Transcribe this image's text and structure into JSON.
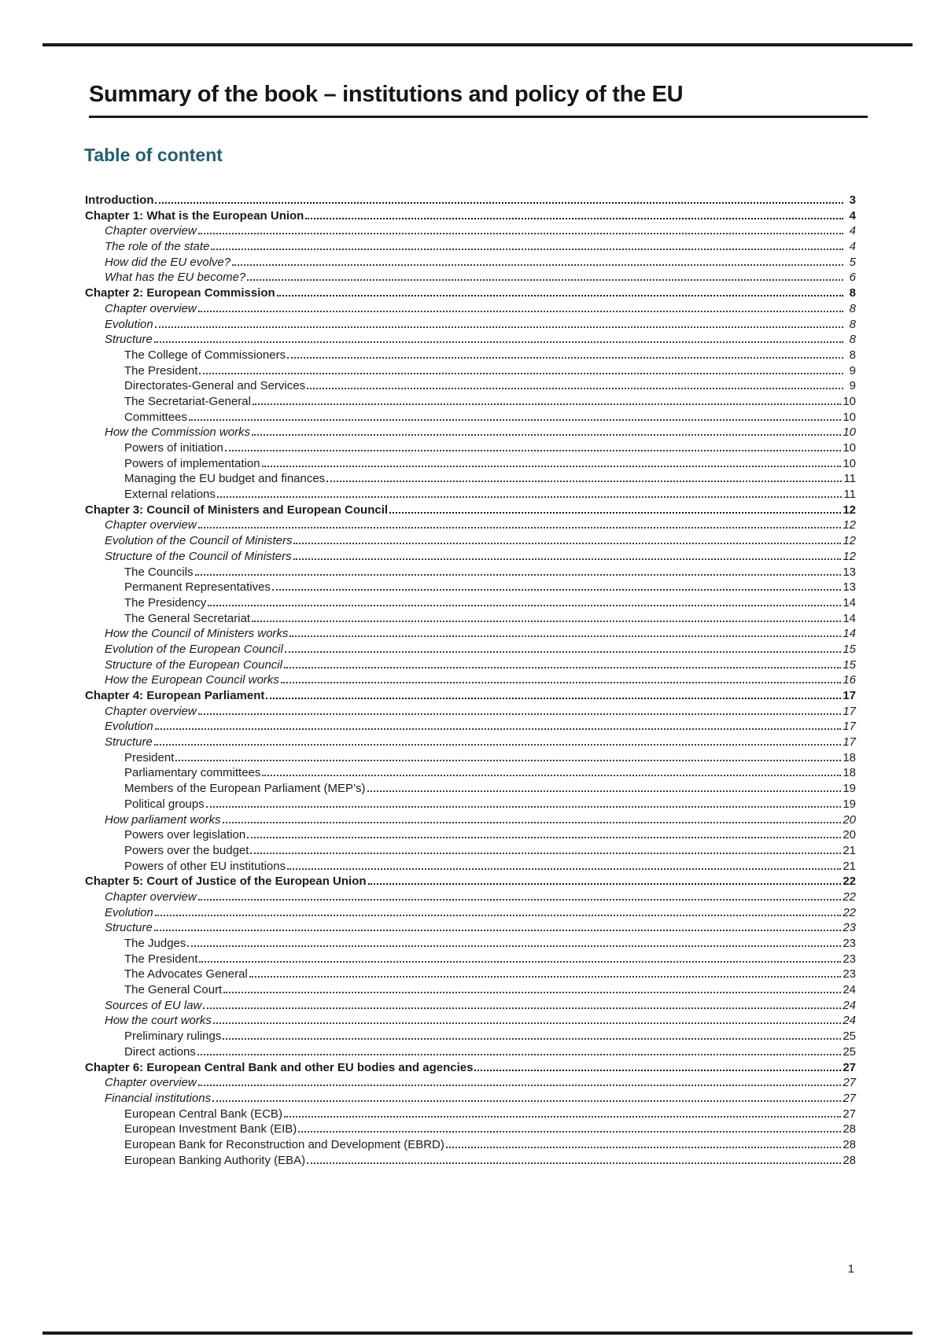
{
  "page": {
    "title": "Summary of the book – institutions and policy of the EU",
    "section_heading": "Table of content",
    "footer_page_number": "1",
    "colors": {
      "heading_teal": "#235E72",
      "body_text": "#1B1B1B",
      "rule": "#1A1A1A"
    }
  },
  "toc": {
    "entries": [
      {
        "label": "Introduction",
        "page": "3",
        "level": 0,
        "style": "chapter"
      },
      {
        "label": "Chapter 1: What is the European Union",
        "page": "4",
        "level": 0,
        "style": "chapter"
      },
      {
        "label": "Chapter overview",
        "page": "4",
        "level": 1,
        "style": "section"
      },
      {
        "label": "The role of the state",
        "page": "4",
        "level": 1,
        "style": "section"
      },
      {
        "label": "How did the EU evolve?",
        "page": "5",
        "level": 1,
        "style": "section"
      },
      {
        "label": "What has the EU become?",
        "page": "6",
        "level": 1,
        "style": "section"
      },
      {
        "label": "Chapter 2: European Commission",
        "page": "8",
        "level": 0,
        "style": "chapter"
      },
      {
        "label": "Chapter overview",
        "page": "8",
        "level": 1,
        "style": "section"
      },
      {
        "label": "Evolution",
        "page": "8",
        "level": 1,
        "style": "section"
      },
      {
        "label": "Structure",
        "page": "8",
        "level": 1,
        "style": "section"
      },
      {
        "label": "The College of Commissioners",
        "page": "8",
        "level": 2,
        "style": "plain"
      },
      {
        "label": "The President",
        "page": "9",
        "level": 2,
        "style": "plain"
      },
      {
        "label": "Directorates-General and Services",
        "page": "9",
        "level": 2,
        "style": "plain"
      },
      {
        "label": "The Secretariat-General",
        "page": "10",
        "level": 2,
        "style": "plain"
      },
      {
        "label": "Committees",
        "page": "10",
        "level": 2,
        "style": "plain"
      },
      {
        "label": "How the Commission works",
        "page": "10",
        "level": 1,
        "style": "section"
      },
      {
        "label": "Powers of initiation",
        "page": "10",
        "level": 2,
        "style": "plain"
      },
      {
        "label": "Powers of implementation",
        "page": "10",
        "level": 2,
        "style": "plain"
      },
      {
        "label": "Managing the EU budget and finances",
        "page": "11",
        "level": 2,
        "style": "plain"
      },
      {
        "label": "External relations",
        "page": "11",
        "level": 2,
        "style": "plain"
      },
      {
        "label": "Chapter 3: Council of Ministers and European Council",
        "page": "12",
        "level": 0,
        "style": "chapter"
      },
      {
        "label": "Chapter overview",
        "page": "12",
        "level": 1,
        "style": "section"
      },
      {
        "label": "Evolution of the Council of Ministers",
        "page": "12",
        "level": 1,
        "style": "section"
      },
      {
        "label": "Structure of the Council of Ministers",
        "page": "12",
        "level": 1,
        "style": "section"
      },
      {
        "label": "The Councils",
        "page": "13",
        "level": 2,
        "style": "plain"
      },
      {
        "label": "Permanent Representatives",
        "page": "13",
        "level": 2,
        "style": "plain"
      },
      {
        "label": "The Presidency",
        "page": "14",
        "level": 2,
        "style": "plain"
      },
      {
        "label": "The General Secretariat",
        "page": "14",
        "level": 2,
        "style": "plain"
      },
      {
        "label": "How the Council of Ministers works",
        "page": "14",
        "level": 1,
        "style": "section"
      },
      {
        "label": "Evolution of the European Council",
        "page": "15",
        "level": 1,
        "style": "section"
      },
      {
        "label": "Structure of the European Council",
        "page": "15",
        "level": 1,
        "style": "section"
      },
      {
        "label": "How the European Council works",
        "page": "16",
        "level": 1,
        "style": "section"
      },
      {
        "label": "Chapter 4: European Parliament",
        "page": "17",
        "level": 0,
        "style": "chapter"
      },
      {
        "label": "Chapter overview",
        "page": "17",
        "level": 1,
        "style": "section"
      },
      {
        "label": "Evolution",
        "page": "17",
        "level": 1,
        "style": "section"
      },
      {
        "label": "Structure",
        "page": "17",
        "level": 1,
        "style": "section"
      },
      {
        "label": "President",
        "page": "18",
        "level": 2,
        "style": "plain"
      },
      {
        "label": "Parliamentary committees",
        "page": "18",
        "level": 2,
        "style": "plain"
      },
      {
        "label": "Members of the European Parliament (MEP’s)",
        "page": "19",
        "level": 2,
        "style": "plain"
      },
      {
        "label": "Political groups",
        "page": "19",
        "level": 2,
        "style": "plain"
      },
      {
        "label": "How parliament works",
        "page": "20",
        "level": 1,
        "style": "section"
      },
      {
        "label": "Powers over legislation",
        "page": "20",
        "level": 2,
        "style": "plain"
      },
      {
        "label": "Powers over the budget",
        "page": "21",
        "level": 2,
        "style": "plain"
      },
      {
        "label": "Powers of other EU institutions",
        "page": "21",
        "level": 2,
        "style": "plain"
      },
      {
        "label": "Chapter 5: Court of Justice of the European Union",
        "page": "22",
        "level": 0,
        "style": "chapter"
      },
      {
        "label": "Chapter overview",
        "page": "22",
        "level": 1,
        "style": "section"
      },
      {
        "label": "Evolution",
        "page": "22",
        "level": 1,
        "style": "section"
      },
      {
        "label": "Structure",
        "page": "23",
        "level": 1,
        "style": "section"
      },
      {
        "label": "The Judges",
        "page": "23",
        "level": 2,
        "style": "plain"
      },
      {
        "label": "The President",
        "page": "23",
        "level": 2,
        "style": "plain"
      },
      {
        "label": "The Advocates General",
        "page": "23",
        "level": 2,
        "style": "plain"
      },
      {
        "label": "The General Court",
        "page": "24",
        "level": 2,
        "style": "plain"
      },
      {
        "label": "Sources of EU law",
        "page": "24",
        "level": 1,
        "style": "section"
      },
      {
        "label": "How the court works",
        "page": "24",
        "level": 1,
        "style": "section"
      },
      {
        "label": "Preliminary rulings",
        "page": "25",
        "level": 2,
        "style": "plain"
      },
      {
        "label": "Direct actions",
        "page": "25",
        "level": 2,
        "style": "plain"
      },
      {
        "label": "Chapter 6: European Central Bank and other EU bodies and agencies",
        "page": "27",
        "level": 0,
        "style": "chapter"
      },
      {
        "label": "Chapter overview",
        "page": "27",
        "level": 1,
        "style": "section"
      },
      {
        "label": "Financial institutions",
        "page": "27",
        "level": 1,
        "style": "section"
      },
      {
        "label": "European Central Bank (ECB)",
        "page": "27",
        "level": 2,
        "style": "plain"
      },
      {
        "label": "European Investment Bank (EIB)",
        "page": "28",
        "level": 2,
        "style": "plain"
      },
      {
        "label": "European Bank for Reconstruction and Development (EBRD)",
        "page": "28",
        "level": 2,
        "style": "plain"
      },
      {
        "label": "European Banking Authority (EBA)",
        "page": "28",
        "level": 2,
        "style": "plain"
      }
    ]
  }
}
